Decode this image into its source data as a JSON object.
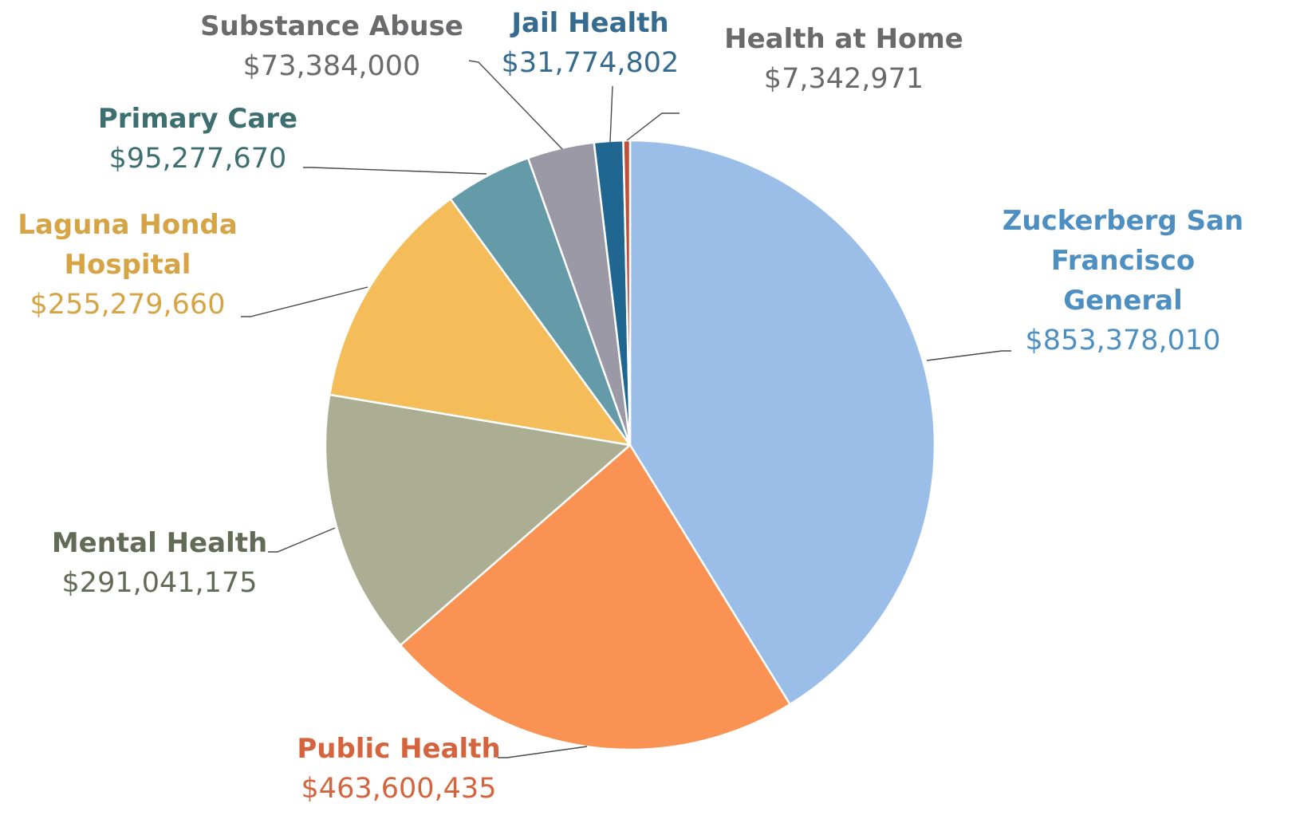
{
  "chart_data": {
    "type": "pie",
    "title": "",
    "start_angle_deg": 0,
    "direction": "clockwise",
    "slice_border_color": "#ffffff",
    "slices": [
      {
        "label_lines": [
          "Zuckerberg San",
          "Francisco",
          "General"
        ],
        "value_text": "$853,378,010",
        "value": 853378010,
        "color": "#9BBEE8",
        "label_color": "#4E8FC2"
      },
      {
        "label_lines": [
          "Public Health"
        ],
        "value_text": "$463,600,435",
        "value": 463600435,
        "color": "#F99253",
        "label_color": "#D3643E"
      },
      {
        "label_lines": [
          "Mental Health"
        ],
        "value_text": "$291,041,175",
        "value": 291041175,
        "color": "#ABAE92",
        "label_color": "#626B55"
      },
      {
        "label_lines": [
          "Laguna Honda",
          "Hospital"
        ],
        "value_text": "$255,279,660",
        "value": 255279660,
        "color": "#F5BD5A",
        "label_color": "#D7A445"
      },
      {
        "label_lines": [
          "Primary Care"
        ],
        "value_text": "$95,277,670",
        "value": 95277670,
        "color": "#659AA8",
        "label_color": "#3E6F70"
      },
      {
        "label_lines": [
          "Substance Abuse"
        ],
        "value_text": "$73,384,000",
        "value": 73384000,
        "color": "#9C99A6",
        "label_color": "#6B6B6E"
      },
      {
        "label_lines": [
          "Jail Health"
        ],
        "value_text": "$31,774,802",
        "value": 31774802,
        "color": "#1F6690",
        "label_color": "#356B8F"
      },
      {
        "label_lines": [
          "Health at Home"
        ],
        "value_text": "$7,342,971",
        "value": 7342971,
        "color": "#C0503A",
        "label_color": "#6A6A6A"
      }
    ]
  }
}
